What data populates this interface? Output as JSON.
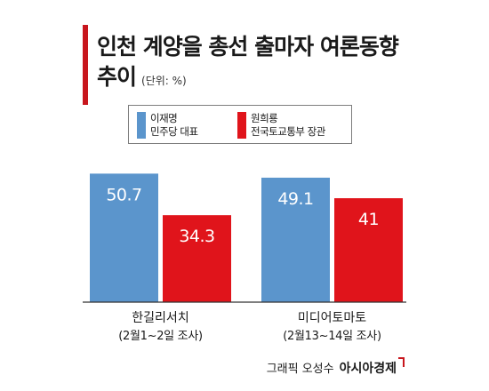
{
  "chart_data": {
    "type": "bar",
    "title": "인천 계양을 총선 출마자 여론동향 추이",
    "title_line1": "인천 계양을 총선 출마자 여론동향",
    "title_line2": "추이",
    "unit": "(단위: %)",
    "categories": [
      "한길리서치",
      "미디어토마토"
    ],
    "category_notes": [
      "(2월1~2일 조사)",
      "(2월13~14일 조사)"
    ],
    "series": [
      {
        "name": "이재명 민주당 대표",
        "legend": "이재명\n민주당 대표",
        "color": "#5b95cc",
        "values": [
          50.7,
          49.1
        ]
      },
      {
        "name": "원희룡 전국토교통부 장관",
        "legend": "원희룡\n전국토교통부 장관",
        "color": "#e0141b",
        "values": [
          34.3,
          41
        ]
      }
    ],
    "value_labels": [
      [
        "50.7",
        "49.1"
      ],
      [
        "34.3",
        "41"
      ]
    ],
    "ylim": [
      0,
      59.6
    ],
    "grid": false,
    "legend_position": "top-center"
  },
  "credit": {
    "prefix": "그래픽 오성수",
    "brand": "아시아경제"
  }
}
